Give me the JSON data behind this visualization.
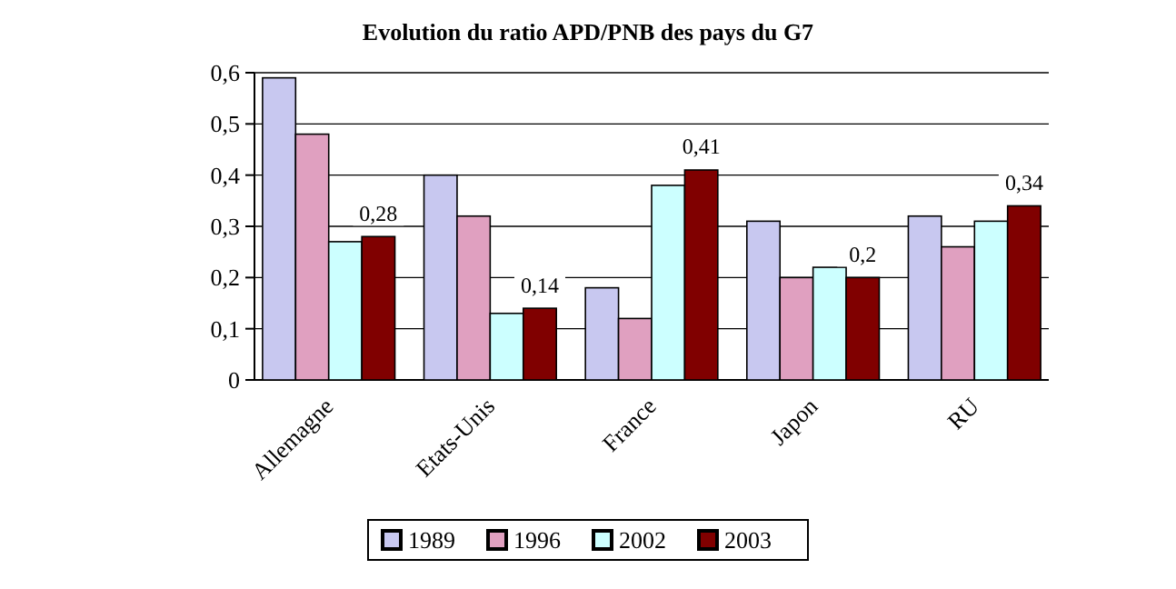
{
  "chart_data": {
    "type": "bar",
    "title": "Evolution du ratio APD/PNB des pays du G7",
    "categories": [
      "Allemagne",
      "Etats-Unis",
      "France",
      "Japon",
      "RU"
    ],
    "series": [
      {
        "name": "1989",
        "color": "#c8c8f0",
        "values": [
          0.59,
          0.4,
          0.18,
          0.31,
          0.32
        ]
      },
      {
        "name": "1996",
        "color": "#e0a0c0",
        "values": [
          0.48,
          0.32,
          0.12,
          0.2,
          0.26
        ]
      },
      {
        "name": "2002",
        "color": "#ccffff",
        "values": [
          0.27,
          0.13,
          0.38,
          0.22,
          0.31
        ]
      },
      {
        "name": "2003",
        "color": "#800000",
        "values": [
          0.28,
          0.14,
          0.41,
          0.2,
          0.34
        ],
        "value_labels": [
          "0,28",
          "0,14",
          "0,41",
          "0,2",
          "0,34"
        ]
      }
    ],
    "ylim": [
      0,
      0.6
    ],
    "yticks": [
      0,
      {
        "value": 0.1,
        "label": "0,1"
      },
      {
        "value": 0.2,
        "label": "0,2"
      },
      {
        "value": 0.3,
        "label": "0,3"
      },
      {
        "value": 0.4,
        "label": "0,4"
      },
      {
        "value": 0.5,
        "label": "0,5"
      },
      {
        "value": 0.6,
        "label": "0,6"
      }
    ],
    "grid": "y",
    "legend": "bottom"
  }
}
